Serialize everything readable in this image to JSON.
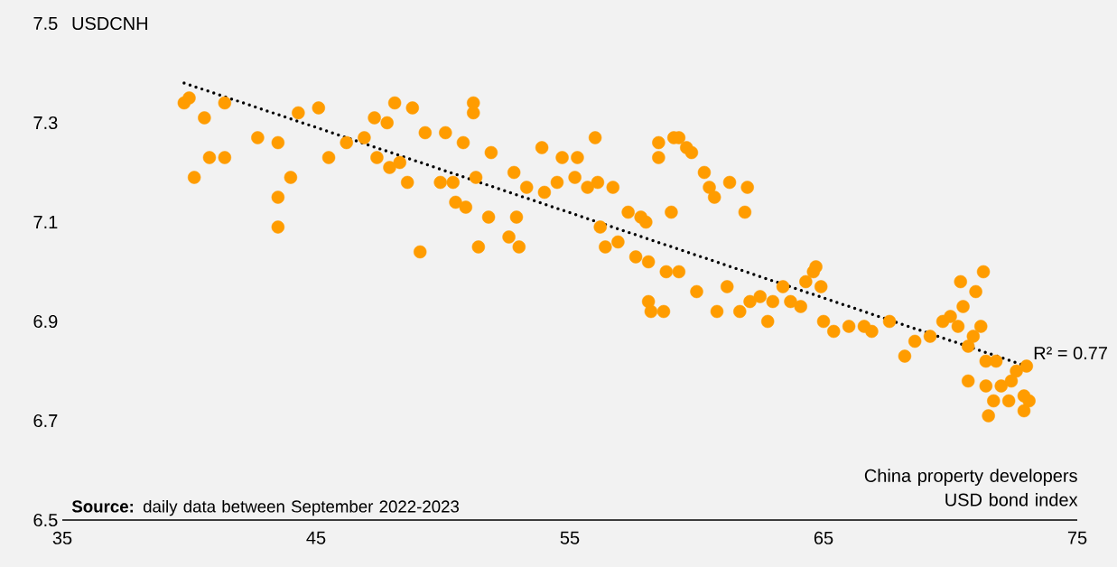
{
  "chart_data": {
    "type": "scatter",
    "xlabel": "China property developers USD bond index",
    "ylabel": "USDCNH",
    "annotations": [
      "R² = 0.77",
      "**Source:** daily data between September 2022-2023"
    ],
    "xlim": [
      35,
      75
    ],
    "ylim": [
      6.5,
      7.5
    ],
    "xticks": [
      35,
      45,
      55,
      65,
      75
    ],
    "yticks": [
      6.5,
      6.7,
      6.9,
      7.1,
      7.3,
      7.5
    ],
    "series": [
      {
        "color": "#ff9c00",
        "marker": "circle",
        "x": [
          39.8,
          40.0,
          40.2,
          40.6,
          40.8,
          41.4,
          41.4,
          42.7,
          43.5,
          43.5,
          43.5,
          44.0,
          44.3,
          45.1,
          45.5,
          46.2,
          46.9,
          47.3,
          47.4,
          47.8,
          47.9,
          48.1,
          48.3,
          48.6,
          48.8,
          49.1,
          49.3,
          49.9,
          50.1,
          50.4,
          50.5,
          50.8,
          50.9,
          51.2,
          51.2,
          51.3,
          51.4,
          51.8,
          51.9,
          52.6,
          52.8,
          53.0,
          52.9,
          53.3,
          53.9,
          54.0,
          54.5,
          54.7,
          55.2,
          55.3,
          55.7,
          56.0,
          56.1,
          56.2,
          56.4,
          56.7,
          56.9,
          57.3,
          57.6,
          57.8,
          58.0,
          58.1,
          58.1,
          58.2,
          58.5,
          58.5,
          58.7,
          58.8,
          59.0,
          59.1,
          59.3,
          59.3,
          59.6,
          59.8,
          60.0,
          60.3,
          60.5,
          60.7,
          60.8,
          61.2,
          61.3,
          61.7,
          61.9,
          62.0,
          62.1,
          62.5,
          62.8,
          63.0,
          63.4,
          63.7,
          64.1,
          64.3,
          64.6,
          64.7,
          64.9,
          65.0,
          65.4,
          66.0,
          66.6,
          66.9,
          67.6,
          68.2,
          68.6,
          69.2,
          69.7,
          70.0,
          70.3,
          70.4,
          70.5,
          70.7,
          70.7,
          70.9,
          71.0,
          71.2,
          71.3,
          71.4,
          71.4,
          71.5,
          71.7,
          71.8,
          72.0,
          72.3,
          72.4,
          72.6,
          72.9,
          73.0,
          72.9,
          73.1
        ],
        "values": [
          7.34,
          7.35,
          7.19,
          7.31,
          7.23,
          7.23,
          7.34,
          7.27,
          7.26,
          7.15,
          7.09,
          7.19,
          7.32,
          7.33,
          7.23,
          7.26,
          7.27,
          7.31,
          7.23,
          7.3,
          7.21,
          7.34,
          7.22,
          7.18,
          7.33,
          7.04,
          7.28,
          7.18,
          7.28,
          7.18,
          7.14,
          7.26,
          7.13,
          7.32,
          7.34,
          7.19,
          7.05,
          7.11,
          7.24,
          7.07,
          7.2,
          7.05,
          7.11,
          7.17,
          7.25,
          7.16,
          7.18,
          7.23,
          7.19,
          7.23,
          7.17,
          7.27,
          7.18,
          7.09,
          7.05,
          7.17,
          7.06,
          7.12,
          7.03,
          7.11,
          7.1,
          7.02,
          6.94,
          6.92,
          7.26,
          7.23,
          6.92,
          7.0,
          7.12,
          7.27,
          7.27,
          7.0,
          7.25,
          7.24,
          6.96,
          7.2,
          7.17,
          7.15,
          6.92,
          6.97,
          7.18,
          6.92,
          7.12,
          7.17,
          6.94,
          6.95,
          6.9,
          6.94,
          6.97,
          6.94,
          6.93,
          6.98,
          7.0,
          7.01,
          6.97,
          6.9,
          6.88,
          6.89,
          6.89,
          6.88,
          6.9,
          6.83,
          6.86,
          6.87,
          6.9,
          6.91,
          6.89,
          6.98,
          6.93,
          6.85,
          6.78,
          6.87,
          6.96,
          6.89,
          7.0,
          6.82,
          6.77,
          6.71,
          6.74,
          6.82,
          6.77,
          6.74,
          6.78,
          6.8,
          6.75,
          6.81,
          6.72,
          6.74
        ]
      },
      {
        "type": "line",
        "color": "#000000",
        "marker": "none",
        "line_style": "dotted",
        "x": [
          39.8,
          73.0
        ],
        "values": [
          7.38,
          6.81
        ]
      }
    ]
  }
}
